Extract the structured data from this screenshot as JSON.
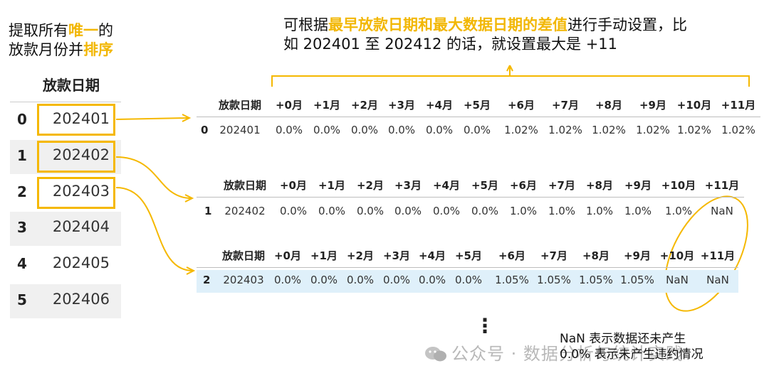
{
  "left_caption": {
    "pre": "提取所有",
    "hl1": "唯一",
    "mid": "的",
    "line2_pre": "放款月份并",
    "hl2": "排序"
  },
  "right_caption": {
    "pre": "可根据",
    "hl": "最早放款日期和最大数据日期的差值",
    "post": "进行手动设置，比",
    "line2": "如 202401 至 202412 的话，就设置最大是 +11"
  },
  "left_table": {
    "header": "放款日期",
    "rows": [
      {
        "idx": "0",
        "value": "202401"
      },
      {
        "idx": "1",
        "value": "202402"
      },
      {
        "idx": "2",
        "value": "202403"
      },
      {
        "idx": "3",
        "value": "202404"
      },
      {
        "idx": "4",
        "value": "202405"
      },
      {
        "idx": "5",
        "value": "202406"
      }
    ]
  },
  "tables": [
    {
      "headers": [
        "放款日期",
        "+0月",
        "+1月",
        "+2月",
        "+3月",
        "+4月",
        "+5月",
        "+6月",
        "+7月",
        "+8月",
        "+9月",
        "+10月",
        "+11月"
      ],
      "row": {
        "idx": "0",
        "cells": [
          "202401",
          "0.0%",
          "0.0%",
          "0.0%",
          "0.0%",
          "0.0%",
          "0.0%",
          "1.02%",
          "1.02%",
          "1.02%",
          "1.02%",
          "1.02%",
          "1.02%"
        ]
      }
    },
    {
      "headers": [
        "放款日期",
        "+0月",
        "+1月",
        "+2月",
        "+3月",
        "+4月",
        "+5月",
        "+6月",
        "+7月",
        "+8月",
        "+9月",
        "+10月",
        "+11月"
      ],
      "row": {
        "idx": "1",
        "cells": [
          "202402",
          "0.0%",
          "0.0%",
          "0.0%",
          "0.0%",
          "0.0%",
          "0.0%",
          "1.0%",
          "1.0%",
          "1.0%",
          "1.0%",
          "1.0%",
          "NaN"
        ]
      }
    },
    {
      "headers": [
        "放款日期",
        "+0月",
        "+1月",
        "+2月",
        "+3月",
        "+4月",
        "+5月",
        "+6月",
        "+7月",
        "+8月",
        "+9月",
        "+10月",
        "+11月"
      ],
      "row": {
        "idx": "2",
        "cells": [
          "202403",
          "0.0%",
          "0.0%",
          "0.0%",
          "0.0%",
          "0.0%",
          "0.0%",
          "1.05%",
          "1.05%",
          "1.05%",
          "1.05%",
          "NaN",
          "NaN"
        ]
      }
    }
  ],
  "ellipsis": "⋮",
  "notes": [
    "NaN 表示数据还未产生",
    "0.0% 表示未产生违约情况"
  ],
  "watermark": "公众号 · 数据分析与统计实践",
  "colors": {
    "accent": "#F5B800",
    "highlight_row": "#dff0fa"
  }
}
